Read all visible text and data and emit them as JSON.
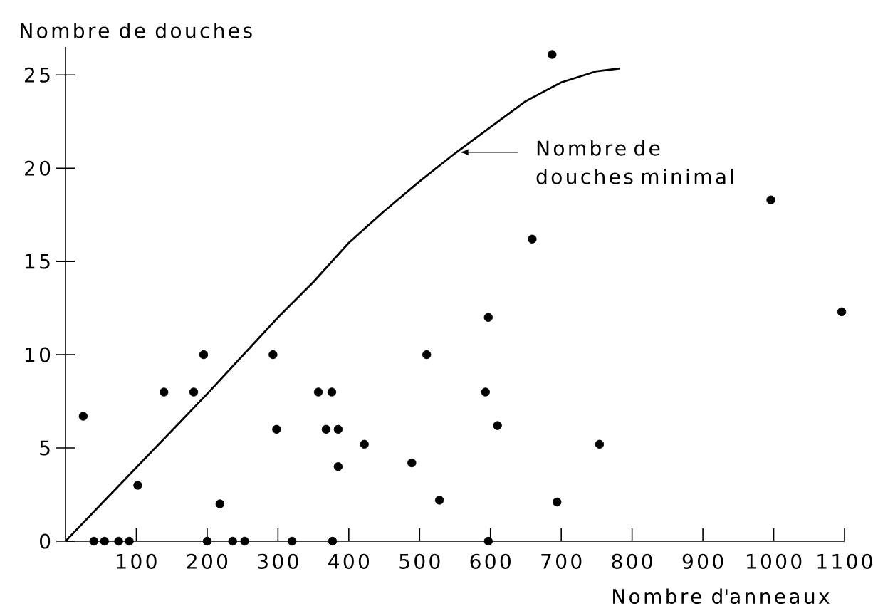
{
  "chart_data": {
    "type": "scatter",
    "xlabel": "Nombre d'anneaux",
    "ylabel": "Nombre de douches",
    "annotations": [
      "Nombre de douches minimal"
    ],
    "xlim": [
      0,
      1100
    ],
    "ylim": [
      0,
      26.5
    ],
    "xticks": [
      100,
      200,
      300,
      400,
      500,
      600,
      700,
      800,
      900,
      1000,
      1100
    ],
    "yticks": [
      0,
      5,
      10,
      15,
      20,
      25
    ],
    "series": [
      {
        "type": "line",
        "color": "#000000",
        "x": [
          0,
          100,
          200,
          300,
          350,
          400,
          450,
          500,
          550,
          600,
          650,
          700,
          750,
          783
        ],
        "values": [
          0,
          3.95,
          7.9,
          12.0,
          13.9,
          16.0,
          17.7,
          19.3,
          20.8,
          22.2,
          23.6,
          24.6,
          25.2,
          25.35
        ]
      },
      {
        "color": "#000000",
        "marker": "circle",
        "x": [
          25,
          40,
          55,
          75,
          90,
          102,
          139,
          181,
          195,
          200,
          218,
          236,
          253,
          293,
          298,
          320,
          357,
          368,
          376,
          377,
          385,
          385,
          422,
          489,
          510,
          528,
          593,
          597,
          597,
          610,
          659,
          687,
          694,
          754,
          996,
          1096
        ],
        "values": [
          6.7,
          0,
          0,
          0,
          0,
          3,
          8,
          8,
          10,
          0,
          2,
          0,
          0,
          10,
          6,
          0,
          8,
          6,
          8,
          0,
          6,
          4,
          5.2,
          4.2,
          10,
          2.2,
          8,
          12,
          0,
          6.2,
          16.2,
          26.1,
          2.1,
          5.2,
          18.3,
          12.3
        ]
      }
    ]
  }
}
